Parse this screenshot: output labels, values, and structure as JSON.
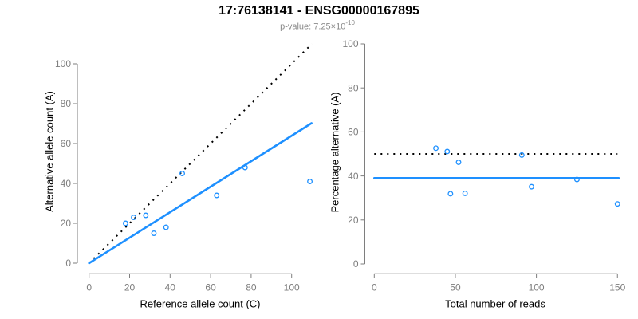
{
  "header": {
    "title": "17:76138141 - ENSG00000167895",
    "pvalue_text": "p-value: 7.25×10",
    "pvalue_exponent": "-10"
  },
  "palette": {
    "accent_blue": "#1E90FF",
    "axis_gray": "#7e7e7e",
    "tick_gray": "#7e7e7e",
    "dotted_black": "#000000",
    "label_black": "#000000",
    "subtitle_gray": "#8a8a8a"
  },
  "chart_data": [
    {
      "type": "scatter",
      "panel": "left",
      "xlabel": "Reference allele count (C)",
      "ylabel": "Alternative allele count (A)",
      "xticks": [
        0,
        20,
        40,
        60,
        80,
        100
      ],
      "yticks": [
        0,
        20,
        40,
        60,
        80,
        100
      ],
      "xlim": [
        0,
        114
      ],
      "ylim": [
        0,
        114
      ],
      "grid": false,
      "points": [
        [
          18,
          20
        ],
        [
          22,
          23
        ],
        [
          28,
          24
        ],
        [
          32,
          15
        ],
        [
          38,
          18
        ],
        [
          46,
          45
        ],
        [
          63,
          34
        ],
        [
          77,
          48
        ],
        [
          109,
          41
        ]
      ],
      "lines": [
        {
          "name": "identity-line",
          "style": "dotted",
          "color": "#000000",
          "from": [
            0,
            0
          ],
          "to": [
            110,
            110
          ]
        },
        {
          "name": "regression-line",
          "style": "solid",
          "color": "#1E90FF",
          "from": [
            0,
            0
          ],
          "to": [
            109.8,
            70.2
          ]
        }
      ]
    },
    {
      "type": "scatter",
      "panel": "right",
      "xlabel": "Total number of reads",
      "ylabel": "Percentage alternative (A)",
      "xticks": [
        0,
        50,
        100,
        150
      ],
      "yticks": [
        0,
        20,
        40,
        60,
        80,
        100
      ],
      "xlim": [
        0,
        152
      ],
      "ylim": [
        0,
        104
      ],
      "grid": false,
      "points": [
        [
          38,
          52.6
        ],
        [
          45,
          51.1
        ],
        [
          52,
          46.2
        ],
        [
          47,
          31.9
        ],
        [
          56,
          32.1
        ],
        [
          91,
          49.5
        ],
        [
          97,
          35.1
        ],
        [
          125,
          38.4
        ],
        [
          150,
          27.3
        ]
      ],
      "lines": [
        {
          "name": "expected-50pct-line",
          "style": "dotted",
          "color": "#000000",
          "from": [
            0,
            50
          ],
          "to": [
            150,
            50
          ]
        },
        {
          "name": "mean-percentage-line",
          "style": "solid",
          "color": "#1E90FF",
          "from": [
            0,
            39
          ],
          "to": [
            150.8,
            39
          ]
        }
      ]
    }
  ]
}
